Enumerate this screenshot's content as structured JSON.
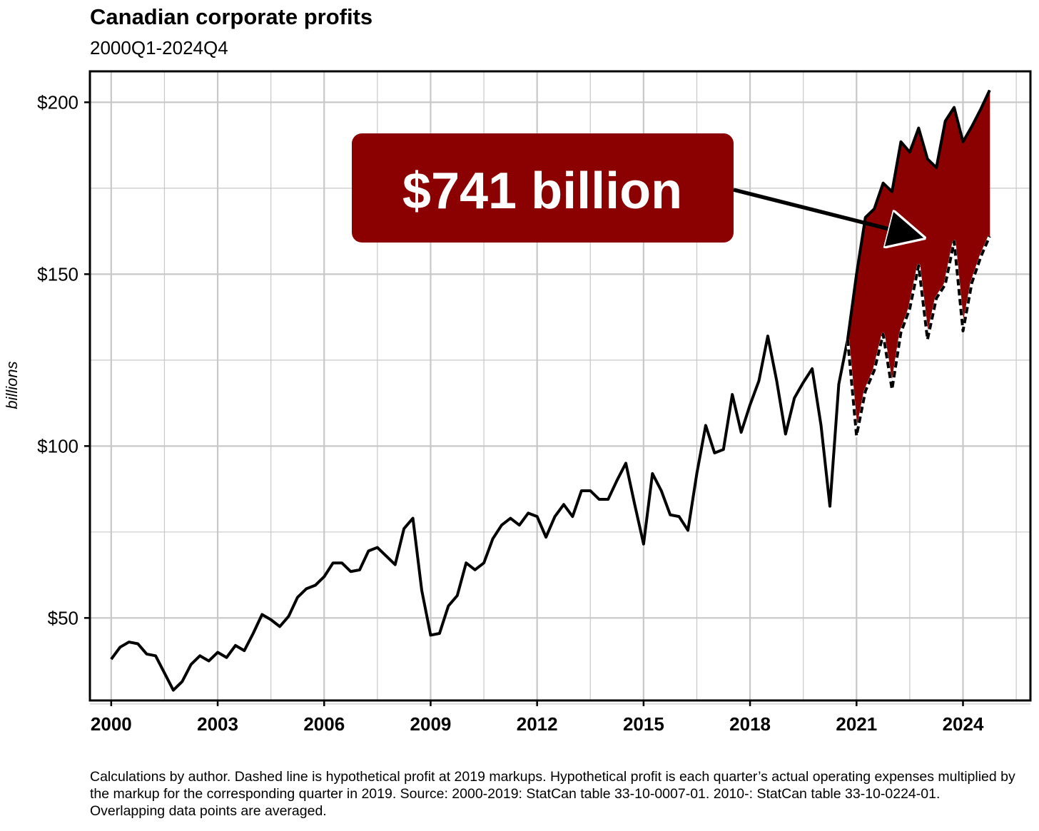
{
  "title": "Canadian corporate profits",
  "subtitle": "2000Q1-2024Q4",
  "footnote": "Calculations by author. Dashed line is hypothetical profit at 2019 markups. Hypothetical profit is each quarter’s actual operating expenses multiplied by the markup for the corresponding quarter in 2019. Source: 2000-2019: StatCan table 33-10-0007-01. 2010-: StatCan table 33-10-0224-01. Overlapping data points are averaged.",
  "colors": {
    "fill": "#8B0000",
    "line": "#000000",
    "grid": "#c8c8c8",
    "callout_text": "#ffffff"
  },
  "chart_data": {
    "type": "line",
    "title": "Canadian corporate profits",
    "subtitle": "2000Q1-2024Q4",
    "ylabel": "billions",
    "xlabel": "",
    "xlim": [
      1999.4,
      2025.9
    ],
    "ylim": [
      26,
      209
    ],
    "grid": true,
    "xticks": [
      2000,
      2003,
      2006,
      2009,
      2012,
      2015,
      2018,
      2021,
      2024
    ],
    "yticks": [
      50,
      100,
      150,
      200
    ],
    "ytick_labels": [
      "$50",
      "$100",
      "$150",
      "$200"
    ],
    "series": [
      {
        "style": "solid",
        "x": [
          2000.0,
          2000.25,
          2000.5,
          2000.75,
          2001.0,
          2001.25,
          2001.5,
          2001.75,
          2002.0,
          2002.25,
          2002.5,
          2002.75,
          2003.0,
          2003.25,
          2003.5,
          2003.75,
          2004.0,
          2004.25,
          2004.5,
          2004.75,
          2005.0,
          2005.25,
          2005.5,
          2005.75,
          2006.0,
          2006.25,
          2006.5,
          2006.75,
          2007.0,
          2007.25,
          2007.5,
          2007.75,
          2008.0,
          2008.25,
          2008.5,
          2008.75,
          2009.0,
          2009.25,
          2009.5,
          2009.75,
          2010.0,
          2010.25,
          2010.5,
          2010.75,
          2011.0,
          2011.25,
          2011.5,
          2011.75,
          2012.0,
          2012.25,
          2012.5,
          2012.75,
          2013.0,
          2013.25,
          2013.5,
          2013.75,
          2014.0,
          2014.25,
          2014.5,
          2014.75,
          2015.0,
          2015.25,
          2015.5,
          2015.75,
          2016.0,
          2016.25,
          2016.5,
          2016.75,
          2017.0,
          2017.25,
          2017.5,
          2017.75,
          2018.0,
          2018.25,
          2018.5,
          2018.75,
          2019.0,
          2019.25,
          2019.5,
          2019.75,
          2020.0,
          2020.25,
          2020.5,
          2020.75,
          2021.0,
          2021.25,
          2021.5,
          2021.75,
          2022.0,
          2022.25,
          2022.5,
          2022.75,
          2023.0,
          2023.25,
          2023.5,
          2023.75,
          2024.0,
          2024.25,
          2024.5,
          2024.75
        ],
        "values": [
          38.0,
          41.5,
          43,
          42.5,
          39.5,
          39,
          34,
          29,
          31.5,
          36.5,
          39,
          37.5,
          40,
          38.5,
          42,
          40.5,
          45.5,
          51,
          49.5,
          47.5,
          50.5,
          56,
          58.5,
          59.5,
          62,
          66,
          66,
          63.5,
          64,
          69.5,
          70.5,
          68,
          65.5,
          76,
          79,
          58,
          45,
          45.5,
          53.5,
          56.5,
          66,
          64,
          66,
          73,
          77,
          79,
          77,
          80.5,
          79.5,
          73.5,
          79.5,
          83,
          79.5,
          87,
          87,
          84.5,
          84.5,
          90,
          95,
          83,
          71.5,
          92,
          87,
          80,
          79.5,
          75.5,
          92,
          106,
          98,
          99,
          115,
          104,
          112,
          119,
          132,
          119,
          103.5,
          114,
          118.5,
          122.5,
          106,
          82.5,
          118,
          131,
          150,
          166.5,
          169,
          176.5,
          174,
          188.5,
          185.5,
          192.5,
          183.5,
          181,
          194.5,
          198.5,
          188.5,
          193,
          198,
          203.5
        ]
      },
      {
        "style": "dashed",
        "x": [
          2020.75,
          2021.0,
          2021.25,
          2021.5,
          2021.75,
          2022.0,
          2022.25,
          2022.5,
          2022.75,
          2023.0,
          2023.25,
          2023.5,
          2023.75,
          2024.0,
          2024.25,
          2024.5,
          2024.75
        ],
        "values": [
          131,
          103,
          116,
          122,
          132.5,
          116.5,
          133,
          140,
          152.5,
          131,
          143,
          147,
          159.5,
          133.5,
          147.5,
          155,
          161
        ]
      }
    ],
    "shaded_area": {
      "between": "solid and dashed",
      "from": 2020.75,
      "to": 2024.75
    },
    "annotations": [
      {
        "text": "$741 billion",
        "arrow_to_x": 2023.0,
        "arrow_to_y": 160
      }
    ]
  }
}
